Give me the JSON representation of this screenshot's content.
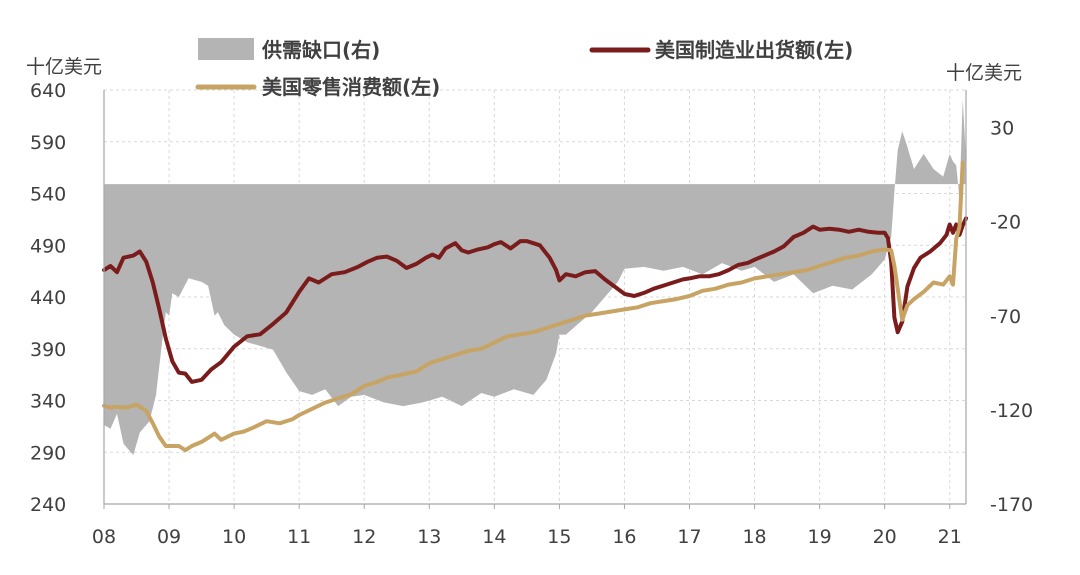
{
  "chart_data": {
    "type": "area+line",
    "x_ticks": [
      "08",
      "09",
      "10",
      "11",
      "12",
      "13",
      "14",
      "15",
      "16",
      "17",
      "18",
      "19",
      "20",
      "21"
    ],
    "x_range": [
      2008.0,
      2021.25
    ],
    "left_axis": {
      "unit": "十亿美元",
      "ylim": [
        240,
        640
      ],
      "ticks": [
        240,
        290,
        340,
        390,
        440,
        490,
        540,
        590,
        640
      ]
    },
    "right_axis": {
      "unit": "十亿美元",
      "ylim": [
        -170,
        50
      ],
      "ticks": [
        -170,
        -120,
        -70,
        -20,
        30
      ]
    },
    "legend": [
      {
        "label": "供需缺口(右)",
        "series": "gap"
      },
      {
        "label": "美国制造业出货额(左)",
        "series": "manufacturing"
      },
      {
        "label": "美国零售消费额(左)",
        "series": "retail"
      }
    ],
    "colors": {
      "gap": "#b4b4b4",
      "manufacturing": "#7b1c1c",
      "retail": "#c8a464"
    },
    "series": [
      {
        "name": "供需缺口(右)",
        "key": "gap",
        "axis": "right",
        "style": "area",
        "baseline": 0,
        "x": [
          2008.0,
          2008.1,
          2008.2,
          2008.3,
          2008.45,
          2008.55,
          2008.7,
          2008.8,
          2008.88,
          2008.95,
          2009.0,
          2009.05,
          2009.15,
          2009.3,
          2009.5,
          2009.6,
          2009.7,
          2009.75,
          2009.85,
          2010.0,
          2010.2,
          2010.4,
          2010.6,
          2010.8,
          2011.0,
          2011.2,
          2011.4,
          2011.6,
          2011.8,
          2012.0,
          2012.3,
          2012.6,
          2012.9,
          2013.2,
          2013.5,
          2013.8,
          2014.0,
          2014.3,
          2014.6,
          2014.8,
          2014.95,
          2015.0,
          2015.1,
          2015.3,
          2015.5,
          2015.7,
          2015.9,
          2016.0,
          2016.3,
          2016.6,
          2016.9,
          2017.2,
          2017.5,
          2017.8,
          2018.0,
          2018.3,
          2018.6,
          2018.9,
          2019.2,
          2019.5,
          2019.8,
          2020.0,
          2020.1,
          2020.15,
          2020.2,
          2020.27,
          2020.33,
          2020.45,
          2020.6,
          2020.75,
          2020.9,
          2021.0,
          2021.05,
          2021.1,
          2021.15,
          2021.2,
          2021.25
        ],
        "y": [
          -128,
          -130,
          -122,
          -138,
          -144,
          -132,
          -126,
          -112,
          -88,
          -68,
          -70,
          -58,
          -60,
          -50,
          -52,
          -54,
          -70,
          -68,
          -75,
          -80,
          -84,
          -86,
          -88,
          -100,
          -110,
          -112,
          -109,
          -118,
          -113,
          -112,
          -116,
          -118,
          -116,
          -113,
          -118,
          -111,
          -113,
          -109,
          -112,
          -104,
          -90,
          -80,
          -80,
          -74,
          -68,
          -60,
          -52,
          -45,
          -44,
          -46,
          -44,
          -48,
          -42,
          -46,
          -44,
          -52,
          -48,
          -58,
          -54,
          -56,
          -48,
          -40,
          -28,
          -4,
          18,
          28,
          22,
          8,
          16,
          8,
          4,
          16,
          12,
          10,
          -8,
          45,
          14
        ]
      },
      {
        "name": "美国制造业出货额(左)",
        "key": "manufacturing",
        "axis": "left",
        "style": "line",
        "x": [
          2008.0,
          2008.1,
          2008.2,
          2008.3,
          2008.45,
          2008.55,
          2008.65,
          2008.75,
          2008.85,
          2008.95,
          2009.05,
          2009.15,
          2009.25,
          2009.35,
          2009.5,
          2009.65,
          2009.8,
          2010.0,
          2010.2,
          2010.4,
          2010.6,
          2010.8,
          2011.0,
          2011.15,
          2011.3,
          2011.5,
          2011.7,
          2011.9,
          2012.05,
          2012.2,
          2012.35,
          2012.5,
          2012.65,
          2012.8,
          2012.95,
          2013.05,
          2013.15,
          2013.25,
          2013.4,
          2013.5,
          2013.6,
          2013.75,
          2013.9,
          2014.0,
          2014.1,
          2014.25,
          2014.4,
          2014.5,
          2014.6,
          2014.7,
          2014.85,
          2014.95,
          2015.0,
          2015.1,
          2015.25,
          2015.4,
          2015.55,
          2015.7,
          2015.85,
          2016.0,
          2016.15,
          2016.3,
          2016.45,
          2016.6,
          2016.75,
          2016.9,
          2017.0,
          2017.15,
          2017.3,
          2017.45,
          2017.6,
          2017.75,
          2017.9,
          2018.0,
          2018.15,
          2018.3,
          2018.45,
          2018.6,
          2018.75,
          2018.9,
          2019.0,
          2019.15,
          2019.3,
          2019.45,
          2019.6,
          2019.75,
          2019.9,
          2020.0,
          2020.05,
          2020.1,
          2020.15,
          2020.2,
          2020.27,
          2020.35,
          2020.45,
          2020.55,
          2020.7,
          2020.85,
          2020.95,
          2021.0,
          2021.05,
          2021.1,
          2021.15,
          2021.2,
          2021.25
        ],
        "y": [
          466,
          470,
          464,
          478,
          480,
          484,
          474,
          454,
          428,
          400,
          378,
          367,
          366,
          358,
          360,
          370,
          377,
          392,
          402,
          404,
          414,
          425,
          445,
          458,
          454,
          462,
          464,
          469,
          474,
          478,
          479,
          475,
          468,
          472,
          478,
          481,
          478,
          487,
          492,
          485,
          483,
          486,
          488,
          491,
          493,
          487,
          494,
          494,
          492,
          490,
          478,
          466,
          456,
          462,
          460,
          464,
          465,
          457,
          450,
          443,
          441,
          444,
          448,
          451,
          454,
          457,
          458,
          460,
          460,
          462,
          466,
          471,
          473,
          476,
          480,
          484,
          489,
          498,
          502,
          508,
          505,
          506,
          505,
          503,
          505,
          503,
          502,
          502,
          497,
          474,
          420,
          406,
          416,
          450,
          468,
          478,
          484,
          492,
          500,
          510,
          502,
          510,
          500,
          509,
          516
        ]
      },
      {
        "name": "美国零售消费额(左)",
        "key": "retail",
        "axis": "left",
        "style": "line",
        "x": [
          2008.0,
          2008.1,
          2008.2,
          2008.35,
          2008.5,
          2008.65,
          2008.75,
          2008.85,
          2008.95,
          2009.05,
          2009.15,
          2009.25,
          2009.35,
          2009.5,
          2009.6,
          2009.7,
          2009.8,
          2010.0,
          2010.15,
          2010.3,
          2010.5,
          2010.7,
          2010.9,
          2011.0,
          2011.2,
          2011.4,
          2011.6,
          2011.8,
          2012.0,
          2012.2,
          2012.35,
          2012.5,
          2012.65,
          2012.8,
          2013.0,
          2013.2,
          2013.4,
          2013.6,
          2013.8,
          2014.0,
          2014.2,
          2014.4,
          2014.6,
          2014.8,
          2015.0,
          2015.2,
          2015.4,
          2015.6,
          2015.8,
          2016.0,
          2016.2,
          2016.4,
          2016.6,
          2016.8,
          2017.0,
          2017.2,
          2017.4,
          2017.6,
          2017.8,
          2018.0,
          2018.2,
          2018.4,
          2018.6,
          2018.8,
          2019.0,
          2019.2,
          2019.4,
          2019.6,
          2019.8,
          2020.0,
          2020.1,
          2020.15,
          2020.2,
          2020.27,
          2020.35,
          2020.45,
          2020.6,
          2020.75,
          2020.9,
          2021.0,
          2021.05,
          2021.1,
          2021.15,
          2021.2
        ],
        "y": [
          335,
          333,
          334,
          333,
          336,
          330,
          318,
          305,
          296,
          296,
          296,
          292,
          296,
          300,
          304,
          308,
          302,
          308,
          310,
          314,
          320,
          318,
          322,
          326,
          332,
          338,
          342,
          346,
          354,
          358,
          362,
          364,
          366,
          368,
          376,
          380,
          384,
          388,
          390,
          396,
          402,
          404,
          406,
          410,
          414,
          418,
          422,
          424,
          426,
          428,
          430,
          434,
          436,
          438,
          441,
          446,
          448,
          452,
          454,
          458,
          460,
          462,
          464,
          466,
          470,
          474,
          478,
          480,
          484,
          486,
          485,
          470,
          448,
          418,
          432,
          438,
          445,
          454,
          452,
          460,
          452,
          496,
          508,
          570
        ]
      }
    ]
  }
}
